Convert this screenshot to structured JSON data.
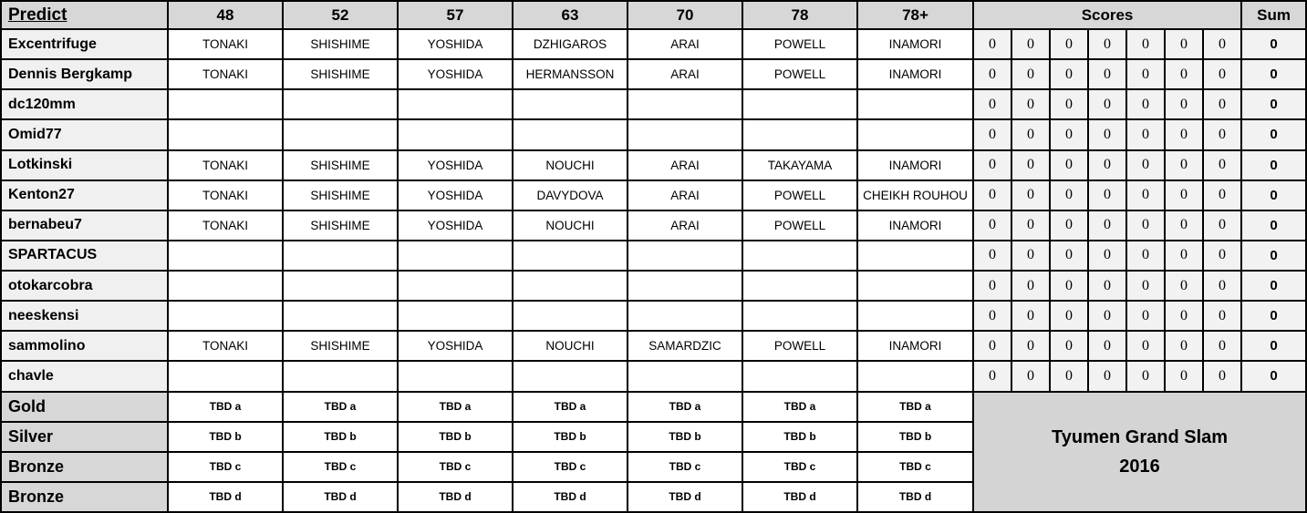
{
  "header": {
    "predict_label": "Predict",
    "weights": [
      "48",
      "52",
      "57",
      "63",
      "70",
      "78",
      "78+"
    ],
    "scores_label": "Scores",
    "sum_label": "Sum"
  },
  "players": [
    {
      "name": "Excentrifuge",
      "predictions": [
        "TONAKI",
        "SHISHIME",
        "YOSHIDA",
        "DZHIGAROS",
        "ARAI",
        "POWELL",
        "INAMORI"
      ],
      "scores": [
        "0",
        "0",
        "0",
        "0",
        "0",
        "0",
        "0"
      ],
      "sum": "0"
    },
    {
      "name": "Dennis Bergkamp",
      "predictions": [
        "TONAKI",
        "SHISHIME",
        "YOSHIDA",
        "HERMANSSON",
        "ARAI",
        "POWELL",
        "INAMORI"
      ],
      "scores": [
        "0",
        "0",
        "0",
        "0",
        "0",
        "0",
        "0"
      ],
      "sum": "0"
    },
    {
      "name": "dc120mm",
      "predictions": [
        "",
        "",
        "",
        "",
        "",
        "",
        ""
      ],
      "scores": [
        "0",
        "0",
        "0",
        "0",
        "0",
        "0",
        "0"
      ],
      "sum": "0"
    },
    {
      "name": "Omid77",
      "predictions": [
        "",
        "",
        "",
        "",
        "",
        "",
        ""
      ],
      "scores": [
        "0",
        "0",
        "0",
        "0",
        "0",
        "0",
        "0"
      ],
      "sum": "0"
    },
    {
      "name": "Lotkinski",
      "predictions": [
        "TONAKI",
        "SHISHIME",
        "YOSHIDA",
        "NOUCHI",
        "ARAI",
        "TAKAYAMA",
        "INAMORI"
      ],
      "scores": [
        "0",
        "0",
        "0",
        "0",
        "0",
        "0",
        "0"
      ],
      "sum": "0"
    },
    {
      "name": "Kenton27",
      "predictions": [
        "TONAKI",
        "SHISHIME",
        "YOSHIDA",
        "DAVYDOVA",
        "ARAI",
        "POWELL",
        "CHEIKH ROUHOU"
      ],
      "scores": [
        "0",
        "0",
        "0",
        "0",
        "0",
        "0",
        "0"
      ],
      "sum": "0"
    },
    {
      "name": "bernabeu7",
      "predictions": [
        "TONAKI",
        "SHISHIME",
        "YOSHIDA",
        "NOUCHI",
        "ARAI",
        "POWELL",
        "INAMORI"
      ],
      "scores": [
        "0",
        "0",
        "0",
        "0",
        "0",
        "0",
        "0"
      ],
      "sum": "0"
    },
    {
      "name": "SPARTACUS",
      "predictions": [
        "",
        "",
        "",
        "",
        "",
        "",
        ""
      ],
      "scores": [
        "0",
        "0",
        "0",
        "0",
        "0",
        "0",
        "0"
      ],
      "sum": "0"
    },
    {
      "name": "otokarcobra",
      "predictions": [
        "",
        "",
        "",
        "",
        "",
        "",
        ""
      ],
      "scores": [
        "0",
        "0",
        "0",
        "0",
        "0",
        "0",
        "0"
      ],
      "sum": "0"
    },
    {
      "name": "neeskensi",
      "predictions": [
        "",
        "",
        "",
        "",
        "",
        "",
        ""
      ],
      "scores": [
        "0",
        "0",
        "0",
        "0",
        "0",
        "0",
        "0"
      ],
      "sum": "0"
    },
    {
      "name": "sammolino",
      "predictions": [
        "TONAKI",
        "SHISHIME",
        "YOSHIDA",
        "NOUCHI",
        "SAMARDZIC",
        "POWELL",
        "INAMORI"
      ],
      "scores": [
        "0",
        "0",
        "0",
        "0",
        "0",
        "0",
        "0"
      ],
      "sum": "0"
    },
    {
      "name": "chavle",
      "predictions": [
        "",
        "",
        "",
        "",
        "",
        "",
        ""
      ],
      "scores": [
        "0",
        "0",
        "0",
        "0",
        "0",
        "0",
        "0"
      ],
      "sum": "0"
    }
  ],
  "medal_rows": [
    {
      "label": "Gold",
      "cells": [
        "TBD a",
        "TBD a",
        "TBD a",
        "TBD a",
        "TBD a",
        "TBD a",
        "TBD a"
      ]
    },
    {
      "label": "Silver",
      "cells": [
        "TBD b",
        "TBD b",
        "TBD b",
        "TBD b",
        "TBD b",
        "TBD b",
        "TBD b"
      ]
    },
    {
      "label": "Bronze",
      "cells": [
        "TBD c",
        "TBD c",
        "TBD c",
        "TBD c",
        "TBD c",
        "TBD c",
        "TBD c"
      ]
    },
    {
      "label": "Bronze",
      "cells": [
        "TBD d",
        "TBD d",
        "TBD d",
        "TBD d",
        "TBD d",
        "TBD d",
        "TBD d"
      ]
    }
  ],
  "footer": {
    "title_line1": "Tyumen Grand Slam",
    "title_line2": "2016"
  },
  "colors": {
    "header_bg": "#d7d7d7",
    "name_column_bg": "#f0f0f0",
    "score_cell_bg": "#f2f2f2",
    "medal_row_bg": "#d7d7d7",
    "title_cell_bg": "#d4d4d4",
    "grid_border": "#000000",
    "cell_bg": "#ffffff"
  }
}
